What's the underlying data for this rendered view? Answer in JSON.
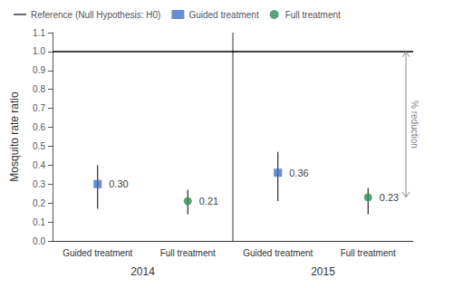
{
  "chart_data": {
    "type": "scatter",
    "categories": [
      "Guided treatment",
      "Full treatment",
      "Guided treatment",
      "Full treatment"
    ],
    "category_groups": [
      "2014",
      "2014",
      "2015",
      "2015"
    ],
    "ylabel": "Mosquito rate ratio",
    "ylim": [
      0,
      1.1
    ],
    "yticks": [
      {
        "value": 0,
        "label": "0.0"
      },
      0.1,
      0.2,
      0.3,
      0.4,
      0.5,
      0.6,
      0.7,
      0.8,
      0.9,
      {
        "value": 1.0,
        "label": "1.0"
      },
      1.1
    ],
    "grid": false,
    "legend": "upper left",
    "data_labels": true,
    "reference_line": {
      "name": "Reference (Null Hypothesis: H0)",
      "y": 1.0,
      "color": "#000000"
    },
    "series": [
      {
        "name": "Guided treatment",
        "color": "#4472C4",
        "marker": "square",
        "values": [
          0.3,
          null,
          0.36,
          null
        ],
        "value_labels": [
          "0.30",
          null,
          "0.36",
          null
        ],
        "lower": [
          0.17,
          null,
          0.21,
          null
        ],
        "upper": [
          0.4,
          null,
          0.47,
          null
        ]
      },
      {
        "name": "Full treatment",
        "color": "#2E8B57",
        "marker": "circle",
        "values": [
          null,
          0.21,
          null,
          0.23
        ],
        "value_labels": [
          null,
          "0.21",
          null,
          "0.23"
        ],
        "lower": [
          null,
          0.14,
          null,
          0.14
        ],
        "upper": [
          null,
          0.27,
          null,
          0.28
        ]
      }
    ],
    "annotations": [
      {
        "text": "% reduction",
        "y_from": 0.23,
        "y_to": 1.0,
        "color": "#808080"
      }
    ]
  }
}
